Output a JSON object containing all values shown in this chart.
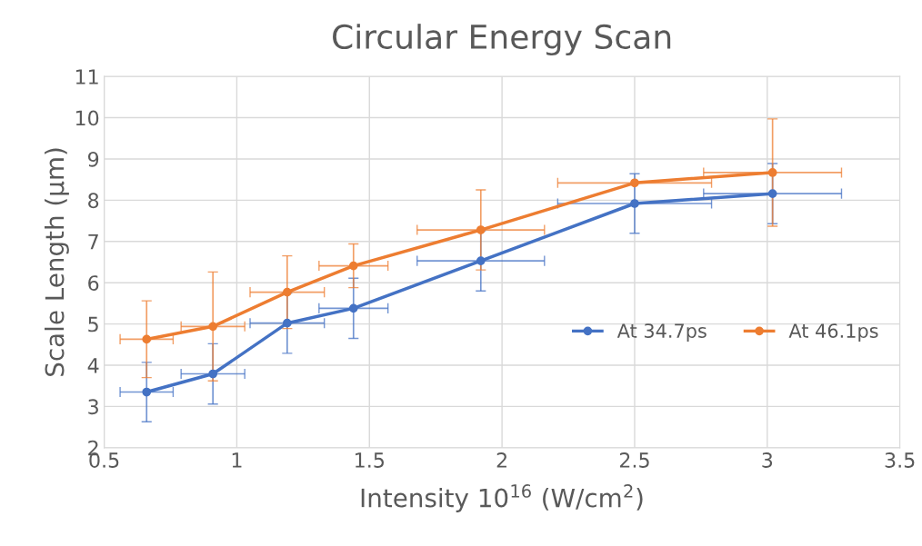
{
  "chart_data": {
    "type": "line",
    "title": "Circular Energy Scan",
    "xlabel": "Intensity 10$^{16}$ (W/cm$^{2}$)",
    "ylabel": "Scale Length (µm)",
    "x": [
      0.66,
      0.91,
      1.19,
      1.44,
      1.92,
      2.5,
      3.02
    ],
    "series": [
      {
        "name": "At 34.7ps",
        "color": "#4472c4",
        "values": [
          3.35,
          3.79,
          5.02,
          5.38,
          6.53,
          7.92,
          8.16
        ],
        "errors": [
          0.72,
          0.73,
          0.73,
          0.73,
          0.73,
          0.72,
          0.73
        ],
        "xerrors": [
          0.1,
          0.12,
          0.14,
          0.13,
          0.24,
          0.29,
          0.26
        ]
      },
      {
        "name": "At 46.1ps",
        "color": "#ed7d31",
        "values": [
          4.63,
          4.94,
          5.77,
          6.41,
          7.28,
          8.42,
          8.67
        ],
        "errors": [
          0.93,
          1.32,
          0.88,
          0.53,
          0.97,
          null,
          1.3
        ],
        "xerrors": [
          0.1,
          0.12,
          0.14,
          0.13,
          0.24,
          0.29,
          0.26
        ]
      }
    ],
    "xlim": [
      0.5,
      3.5
    ],
    "xticks": [
      0.5,
      1,
      1.5,
      2,
      2.5,
      3,
      3.5
    ],
    "ylim": [
      2,
      11
    ],
    "yticks": [
      2,
      3,
      4,
      5,
      6,
      7,
      8,
      9,
      10,
      11
    ],
    "grid": true,
    "legend": "right",
    "marker": "circle",
    "line_style": "solid"
  }
}
